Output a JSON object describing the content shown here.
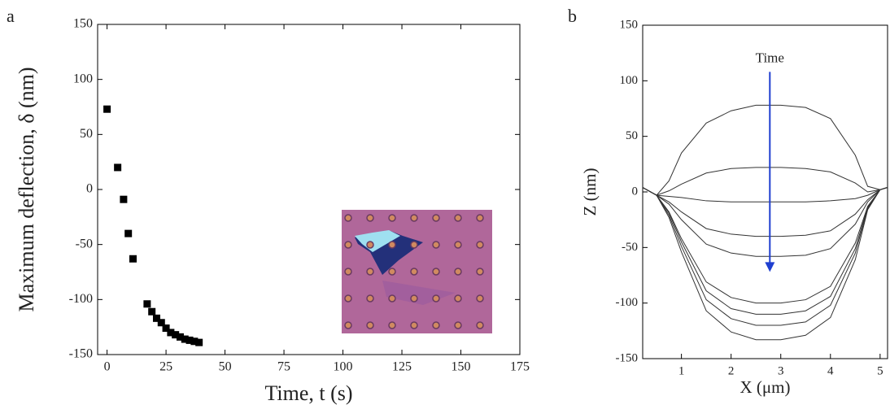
{
  "chart_data": [
    {
      "type": "scatter",
      "panel": "a",
      "xlabel": "Time, t (s)",
      "ylabel": "Maximum deflection, δ (nm)",
      "x": [
        0,
        4.5,
        7,
        9,
        11,
        17,
        19,
        21,
        23,
        25,
        27,
        29,
        31,
        33,
        35,
        37,
        39
      ],
      "values": [
        73,
        20,
        -9,
        -40,
        -63,
        -104,
        -111,
        -117,
        -121,
        -126,
        -130,
        -132,
        -134,
        -136,
        -137,
        -138,
        -139
      ],
      "color": "#000000",
      "xlim": [
        -4,
        175
      ],
      "xticks": [
        0,
        25,
        50,
        75,
        100,
        125,
        150,
        175
      ],
      "ylim": [
        -150,
        150
      ],
      "yticks": [
        -150,
        -100,
        -50,
        0,
        50,
        100,
        150
      ]
    },
    {
      "type": "line",
      "panel": "b",
      "xlabel": "X (μm)",
      "ylabel": "Z (nm)",
      "x": [
        0.22,
        0.5,
        0.75,
        1,
        1.5,
        2,
        2.5,
        3,
        3.5,
        4,
        4.5,
        4.75,
        5,
        5.15
      ],
      "series": [
        {
          "color": "#333333",
          "values": [
            4,
            -3,
            10,
            35,
            62,
            73,
            78,
            78,
            76,
            66,
            33,
            5,
            2,
            4
          ]
        },
        {
          "color": "#333333",
          "values": [
            4,
            -3,
            1,
            7,
            17,
            21,
            22,
            22,
            21,
            18,
            8,
            0,
            2,
            4
          ]
        },
        {
          "color": "#333333",
          "values": [
            4,
            -3,
            -4,
            -5,
            -8,
            -9,
            -9,
            -9,
            -9,
            -8,
            -6,
            -3,
            2,
            4
          ]
        },
        {
          "color": "#333333",
          "values": [
            4,
            -3,
            -9,
            -18,
            -33,
            -38,
            -40,
            -40,
            -39,
            -35,
            -20,
            -7,
            2,
            4
          ]
        },
        {
          "color": "#333333",
          "values": [
            4,
            -3,
            -11,
            -25,
            -47,
            -55,
            -58,
            -58,
            -57,
            -51,
            -29,
            -9,
            2,
            4
          ]
        },
        {
          "color": "#333333",
          "values": [
            4,
            -3,
            -18,
            -42,
            -81,
            -95,
            -100,
            -100,
            -97,
            -85,
            -46,
            -13,
            2,
            4
          ]
        },
        {
          "color": "#333333",
          "values": [
            4,
            -3,
            -19,
            -45,
            -89,
            -105,
            -110,
            -110,
            -107,
            -94,
            -51,
            -14,
            2,
            4
          ]
        },
        {
          "color": "#333333",
          "values": [
            4,
            -3,
            -21,
            -49,
            -97,
            -114,
            -120,
            -120,
            -117,
            -102,
            -55,
            -15,
            2,
            4
          ]
        },
        {
          "color": "#333333",
          "values": [
            4,
            -3,
            -23,
            -54,
            -107,
            -126,
            -133,
            -133,
            -129,
            -113,
            -61,
            -16,
            2,
            4
          ]
        }
      ],
      "annotation": {
        "text": "Time",
        "x": 2.78,
        "y": [
          108,
          -72
        ],
        "color": "#1f3fd0"
      },
      "xlim": [
        0.22,
        5.15
      ],
      "xticks": [
        1,
        2,
        3,
        4,
        5
      ],
      "ylim": [
        -150,
        150
      ],
      "yticks": [
        -150,
        -100,
        -50,
        0,
        50,
        100,
        150
      ]
    }
  ]
}
